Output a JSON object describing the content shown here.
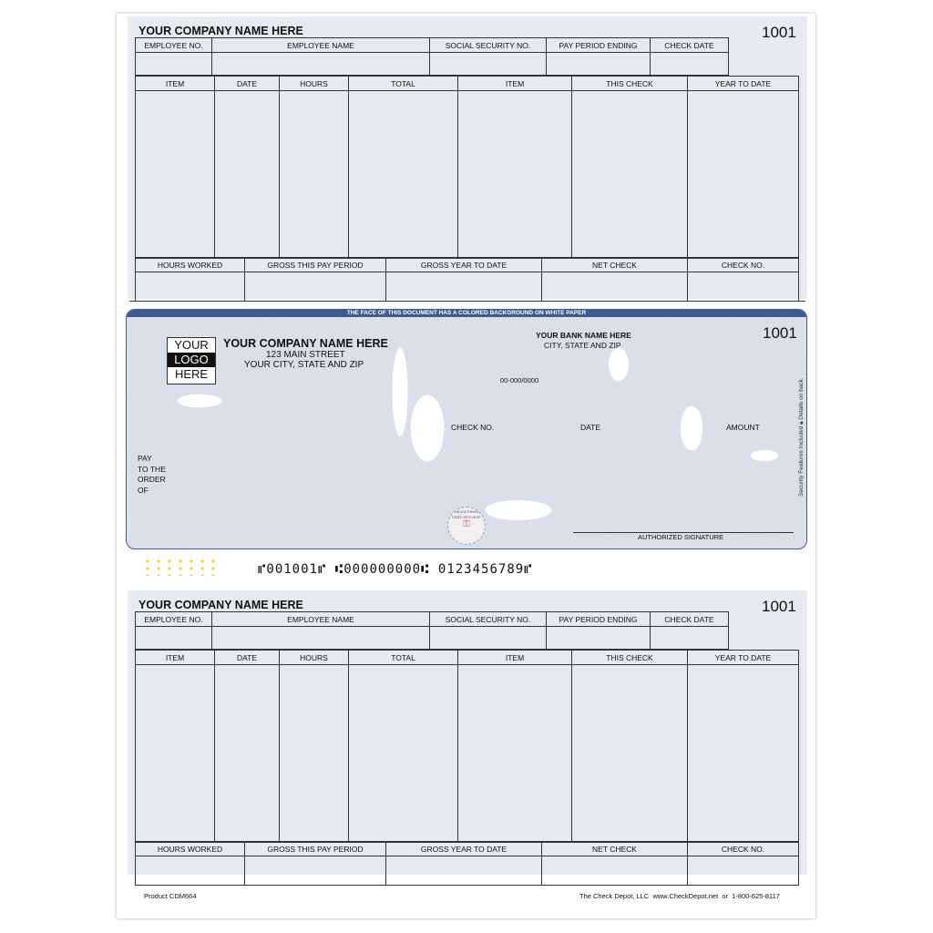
{
  "stub": {
    "company_name": "YOUR COMPANY NAME HERE",
    "check_number": "1001",
    "employee_headers": [
      "EMPLOYEE NO.",
      "EMPLOYEE NAME",
      "SOCIAL SECURITY NO.",
      "PAY PERIOD ENDING",
      "CHECK DATE"
    ],
    "earnings_headers": [
      "ITEM",
      "DATE",
      "HOURS",
      "TOTAL",
      "ITEM",
      "THIS CHECK",
      "YEAR TO DATE"
    ],
    "summary_headers": [
      "HOURS WORKED",
      "GROSS THIS PAY PERIOD",
      "GROSS YEAR TO DATE",
      "NET CHECK",
      "CHECK NO."
    ]
  },
  "check": {
    "banner": "THE FACE OF THIS DOCUMENT HAS A COLORED BACKGROUND ON WHITE PAPER",
    "logo_lines": [
      "YOUR",
      "LOGO",
      "HERE"
    ],
    "company_name": "YOUR COMPANY NAME HERE",
    "street": "123 MAIN STREET",
    "city": "YOUR CITY, STATE AND ZIP",
    "bank_name": "YOUR BANK NAME HERE",
    "bank_city": "CITY, STATE AND ZIP",
    "routing_fraction": "00-000/0000",
    "check_number": "1001",
    "check_no_label": "CHECK NO.",
    "date_label": "DATE",
    "amount_label": "AMOUNT",
    "pay_to_lines": [
      "PAY",
      "TO THE",
      "ORDER",
      "OF"
    ],
    "signature_label": "AUTHORIZED SIGNATURE",
    "seal_text": "RUB AND ERASE / FADES WITH HEAT",
    "security_note": "Security Features Included",
    "details_note": "Details on back.",
    "micr": "⑈001001⑈ ⑆000000000⑆ 0123456789⑈"
  },
  "footer": {
    "product": "Product CDM664",
    "vendor": "The Check Depot, LLC  www.CheckDepot.net  or  1-800-625-8117"
  },
  "colors": {
    "accent": "#3f5a8c",
    "stub_background": "#e6eaf3"
  }
}
